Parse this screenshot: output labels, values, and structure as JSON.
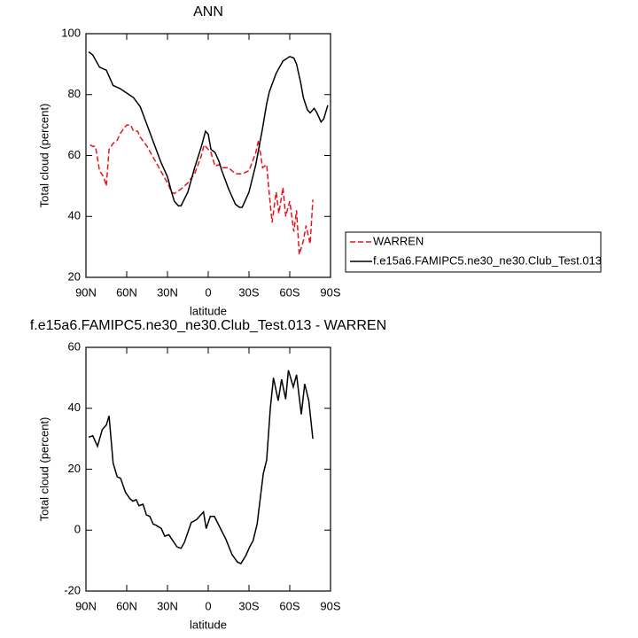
{
  "chart_data": [
    {
      "type": "line",
      "title": "ANN",
      "x_label": "latitude",
      "y_label": "Total cloud (percent)",
      "xlim": [
        90,
        -90
      ],
      "ylim": [
        20,
        100
      ],
      "xticks": [
        {
          "value": 90,
          "label": "90N"
        },
        {
          "value": 60,
          "label": "60N"
        },
        {
          "value": 30,
          "label": "30N"
        },
        0,
        {
          "value": -30,
          "label": "30S"
        },
        {
          "value": -60,
          "label": "60S"
        },
        {
          "value": -90,
          "label": "90S"
        }
      ],
      "yticks": [
        20,
        40,
        60,
        80,
        100
      ],
      "legend": "outside-right",
      "series": [
        {
          "name": "WARREN",
          "color": "#e8141c",
          "dashed": true,
          "x": [
            87,
            85,
            83,
            80,
            77,
            75,
            73,
            70,
            67,
            65,
            62,
            60,
            57,
            55,
            52,
            50,
            45,
            40,
            35,
            30,
            27,
            25,
            20,
            15,
            10,
            5,
            3,
            0,
            -2,
            -5,
            -8,
            -10,
            -15,
            -20,
            -25,
            -30,
            -35,
            -37,
            -40,
            -43,
            -45,
            -47,
            -50,
            -52,
            -55,
            -57,
            -60,
            -63,
            -65,
            -67,
            -70,
            -72,
            -75,
            -77
          ],
          "values": [
            63.5,
            63,
            63,
            55,
            53,
            50,
            62,
            64,
            65,
            67,
            69,
            70,
            70,
            68,
            68,
            66,
            63,
            59,
            55,
            51,
            48,
            47.5,
            49,
            51,
            54,
            60,
            63.5,
            62,
            61,
            56.5,
            57,
            56,
            56,
            54,
            54,
            55,
            61,
            65,
            56,
            57,
            47,
            38,
            48,
            41,
            49.5,
            40,
            45,
            35,
            42,
            27.5,
            32,
            37,
            31,
            45.5
          ]
        },
        {
          "name": "f.e15a6.FAMIPC5.ne30_ne30.Club_Test.013",
          "color": "#000000",
          "dashed": false,
          "x": [
            88,
            85,
            80,
            75,
            72,
            70,
            65,
            60,
            55,
            50,
            45,
            40,
            35,
            30,
            27,
            25,
            22,
            20,
            15,
            10,
            5,
            2,
            0,
            -2,
            -5,
            -8,
            -10,
            -15,
            -20,
            -23,
            -25,
            -30,
            -35,
            -40,
            -43,
            -45,
            -50,
            -55,
            -60,
            -63,
            -65,
            -68,
            -70,
            -73,
            -75,
            -78,
            -80,
            -83,
            -85,
            -88
          ],
          "values": [
            94,
            93,
            89,
            88,
            85,
            83,
            82,
            80.5,
            79,
            76,
            70,
            64,
            58,
            53,
            48,
            45,
            43.5,
            43.5,
            48,
            56,
            63,
            68,
            67,
            62,
            61,
            58,
            55,
            49,
            44,
            43,
            43,
            48,
            57,
            69,
            77,
            81,
            87,
            91,
            92.5,
            92,
            90,
            84,
            79,
            75,
            74,
            75.5,
            74,
            71,
            72,
            76.5
          ]
        }
      ]
    },
    {
      "type": "line",
      "title": "f.e15a6.FAMIPC5.ne30_ne30.Club_Test.013 - WARREN",
      "x_label": "latitude",
      "y_label": "Total cloud (percent)",
      "xlim": [
        90,
        -90
      ],
      "ylim": [
        -20,
        60
      ],
      "xticks": [
        {
          "value": 90,
          "label": "90N"
        },
        {
          "value": 60,
          "label": "60N"
        },
        {
          "value": 30,
          "label": "30N"
        },
        0,
        {
          "value": -30,
          "label": "30S"
        },
        {
          "value": -60,
          "label": "60S"
        },
        {
          "value": -90,
          "label": "90S"
        }
      ],
      "yticks": [
        -20,
        0,
        20,
        40,
        60
      ],
      "series": [
        {
          "color": "#000000",
          "dashed": false,
          "x": [
            88,
            85,
            81.5,
            78,
            75,
            73,
            70,
            67,
            64.5,
            61,
            58,
            55.5,
            53,
            51,
            48,
            45.5,
            43,
            40.5,
            38,
            34.5,
            32,
            29,
            26,
            23,
            20,
            17.5,
            12.5,
            8.5,
            3.5,
            1.5,
            -1.5,
            -4.5,
            -13,
            -17.5,
            -21.5,
            -24,
            -27.5,
            -30.5,
            -33,
            -36,
            -40.5,
            -43,
            -45.7,
            -48,
            -51.5,
            -54,
            -57,
            -59,
            -62.6,
            -65,
            -68.5,
            -71,
            -74,
            -77
          ],
          "values": [
            30.5,
            31,
            27.5,
            33,
            34.5,
            37.5,
            22,
            17.5,
            17,
            12.5,
            10.5,
            9.5,
            10,
            8,
            8.5,
            5,
            4.5,
            2,
            1.5,
            0.5,
            -2,
            -1.5,
            -3.5,
            -5.5,
            -6,
            -4,
            2.5,
            3.5,
            6,
            0.5,
            4.5,
            4.5,
            -3,
            -8,
            -10.5,
            -11,
            -8.5,
            -5.5,
            -3.5,
            2,
            18.5,
            23,
            40,
            50,
            42.5,
            49.5,
            43,
            52.5,
            47,
            51,
            38,
            48,
            42.5,
            30
          ]
        }
      ]
    }
  ]
}
